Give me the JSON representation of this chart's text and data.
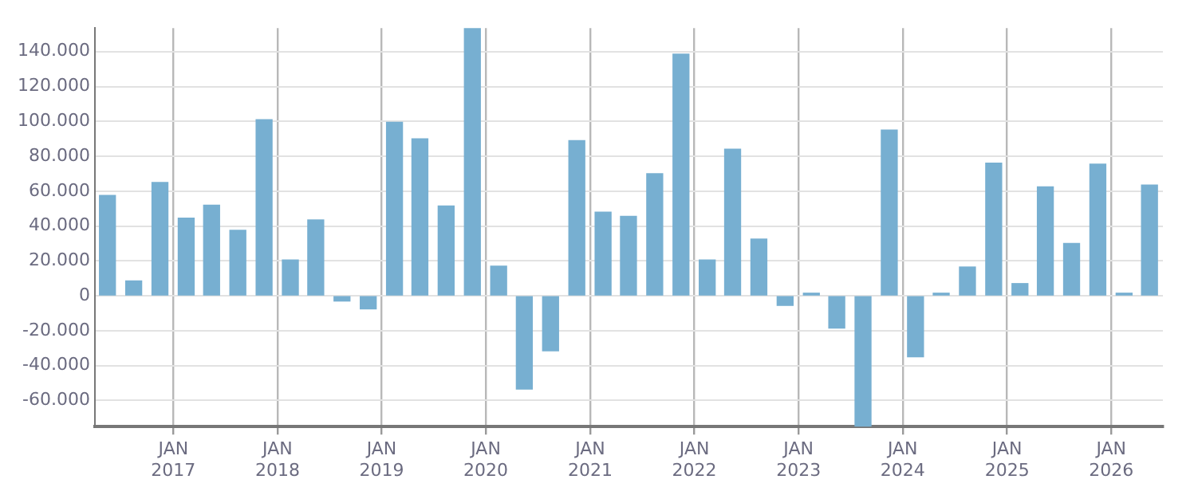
{
  "chart_data": {
    "type": "bar",
    "x": [
      "2016-05-15",
      "2016-08-15",
      "2016-11-15",
      "2017-02-15",
      "2017-05-15",
      "2017-08-15",
      "2017-11-15",
      "2018-02-15",
      "2018-05-15",
      "2018-08-15",
      "2018-11-15",
      "2019-02-15",
      "2019-05-15",
      "2019-08-15",
      "2019-11-15",
      "2020-02-15",
      "2020-05-15",
      "2020-08-15",
      "2020-11-15",
      "2021-02-15",
      "2021-05-15",
      "2021-08-15",
      "2021-11-15",
      "2022-02-15",
      "2022-05-15",
      "2022-08-15",
      "2022-11-15",
      "2023-02-15",
      "2023-05-15",
      "2023-08-15",
      "2023-11-15",
      "2024-02-15",
      "2024-05-15",
      "2024-08-15",
      "2024-11-15",
      "2025-02-15",
      "2025-05-15",
      "2025-08-15",
      "2025-11-15",
      "2026-02-15",
      "2026-05-15"
    ],
    "values": [
      57500,
      8500,
      65000,
      44500,
      52000,
      37500,
      101000,
      20500,
      43500,
      -3000,
      -7500,
      99500,
      90000,
      51500,
      153500,
      17000,
      -53500,
      -31500,
      89000,
      48000,
      45500,
      70000,
      138500,
      20500,
      84000,
      32500,
      -5500,
      1500,
      -18500,
      -75000,
      95000,
      -35000,
      1500,
      16500,
      76000,
      7000,
      62500,
      30000,
      75500,
      1500,
      63500
    ],
    "color": "#77afd1",
    "xlim": [
      "2016-04",
      "2026-07"
    ],
    "xticks": [
      {
        "value": "2017-01",
        "label": "JAN 2017"
      },
      {
        "value": "2018-01",
        "label": "JAN 2018"
      },
      {
        "value": "2019-01",
        "label": "JAN 2019"
      },
      {
        "value": "2020-01",
        "label": "JAN 2020"
      },
      {
        "value": "2021-01",
        "label": "JAN 2021"
      },
      {
        "value": "2022-01",
        "label": "JAN 2022"
      },
      {
        "value": "2023-01",
        "label": "JAN 2023"
      },
      {
        "value": "2024-01",
        "label": "JAN 2024"
      },
      {
        "value": "2025-01",
        "label": "JAN 2025"
      },
      {
        "value": "2026-01",
        "label": "JAN 2026"
      }
    ],
    "ylim": [
      -75000,
      153500
    ],
    "yticks": [
      {
        "value": -60000,
        "label": "-60.000"
      },
      {
        "value": -40000,
        "label": "-40.000"
      },
      {
        "value": -20000,
        "label": "-20.000"
      },
      0,
      {
        "value": 20000,
        "label": "20.000"
      },
      {
        "value": 40000,
        "label": "40.000"
      },
      {
        "value": 60000,
        "label": "60.000"
      },
      {
        "value": 80000,
        "label": "80.000"
      },
      {
        "value": 100000,
        "label": "100.000"
      },
      {
        "value": 120000,
        "label": "120.000"
      },
      {
        "value": 140000,
        "label": "140.000"
      }
    ],
    "grid": true
  }
}
